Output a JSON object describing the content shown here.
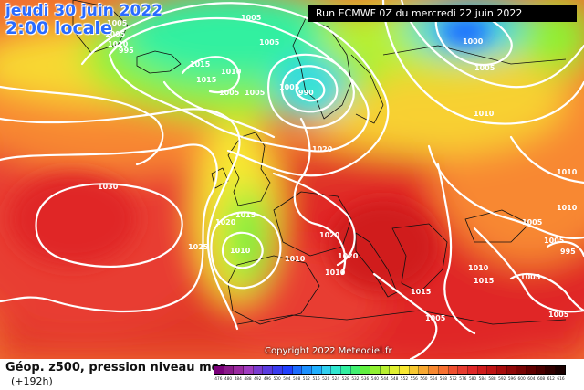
{
  "header": {
    "date_line1": "jeudi 30 juin 2022",
    "date_line2": "2:00 locale",
    "run_info": "Run ECMWF 0Z du mercredi 22 juin 2022"
  },
  "copyright": "Copyright 2022 Meteociel.fr",
  "footer": {
    "title": "Géop. z500, pression niveau mer",
    "lead": "(+192h)"
  },
  "legend": {
    "labels": [
      "476",
      "480",
      "484",
      "488",
      "492",
      "496",
      "500",
      "504",
      "508",
      "512",
      "516",
      "520",
      "524",
      "528",
      "532",
      "536",
      "540",
      "544",
      "548",
      "552",
      "556",
      "560",
      "564",
      "568",
      "572",
      "576",
      "580",
      "584",
      "588",
      "592",
      "596",
      "600",
      "604",
      "608",
      "612",
      "616"
    ],
    "colors": [
      "#7a007a",
      "#8a1a8a",
      "#9a2aa0",
      "#a03cc0",
      "#7a3cd0",
      "#5a3ce0",
      "#3a3cf0",
      "#2040ff",
      "#1c6cff",
      "#1c90ff",
      "#20b0ff",
      "#30d0f0",
      "#30e8d0",
      "#30f0a0",
      "#40f070",
      "#60f040",
      "#90f030",
      "#b8f030",
      "#e0f030",
      "#f8e830",
      "#f8c830",
      "#f8a830",
      "#f88830",
      "#f87030",
      "#f05030",
      "#e83c30",
      "#e02828",
      "#d01c1c",
      "#c01414",
      "#a80c0c",
      "#900808",
      "#780404",
      "#600000",
      "#4a0000",
      "#300000",
      "#1a0000"
    ],
    "colors_map": {
      "purple": "#8a2be2",
      "deep_blue": "#2040ff",
      "cyan": "#30d0f0",
      "green": "#50e840",
      "yellow": "#f8e830",
      "orange": "#f89030",
      "red": "#e83c30",
      "dark_red": "#b01010"
    }
  },
  "isobars": [
    {
      "label": "1005",
      "id": "iso-a"
    },
    {
      "label": "1005",
      "id": "iso-b"
    },
    {
      "label": "1010",
      "id": "iso-c"
    },
    {
      "label": "995",
      "id": "iso-d"
    },
    {
      "label": "1015",
      "id": "iso-e"
    },
    {
      "label": "1010",
      "id": "iso-f"
    },
    {
      "label": "1015",
      "id": "iso-g"
    },
    {
      "label": "1005",
      "id": "iso-h"
    },
    {
      "label": "1005",
      "id": "iso-i"
    },
    {
      "label": "1005",
      "id": "iso-j"
    },
    {
      "label": "1005",
      "id": "iso-k"
    },
    {
      "label": "990",
      "id": "iso-l"
    },
    {
      "label": "1005",
      "id": "iso-m"
    },
    {
      "label": "1000",
      "id": "iso-n"
    },
    {
      "label": "1005",
      "id": "iso-o"
    },
    {
      "label": "1010",
      "id": "iso-p"
    },
    {
      "label": "1020",
      "id": "iso-q"
    },
    {
      "label": "1030",
      "id": "iso-r"
    },
    {
      "label": "1020",
      "id": "iso-s"
    },
    {
      "label": "1015",
      "id": "iso-t"
    },
    {
      "label": "1025",
      "id": "iso-u"
    },
    {
      "label": "1010",
      "id": "iso-v"
    },
    {
      "label": "1010",
      "id": "iso-w"
    },
    {
      "label": "1020",
      "id": "iso-x"
    },
    {
      "label": "1020",
      "id": "iso-y"
    },
    {
      "label": "1010",
      "id": "iso-z"
    },
    {
      "label": "1010",
      "id": "iso-aa"
    },
    {
      "label": "1005",
      "id": "iso-ab"
    },
    {
      "label": "1010",
      "id": "iso-ac"
    },
    {
      "label": "995",
      "id": "iso-ad"
    },
    {
      "label": "1005",
      "id": "iso-ae"
    },
    {
      "label": "1015",
      "id": "iso-af"
    },
    {
      "label": "1010",
      "id": "iso-ag"
    },
    {
      "label": "1015",
      "id": "iso-ah"
    },
    {
      "label": "1005",
      "id": "iso-ai"
    },
    {
      "label": "1005",
      "id": "iso-aj"
    },
    {
      "label": "1005",
      "id": "iso-ak"
    }
  ]
}
